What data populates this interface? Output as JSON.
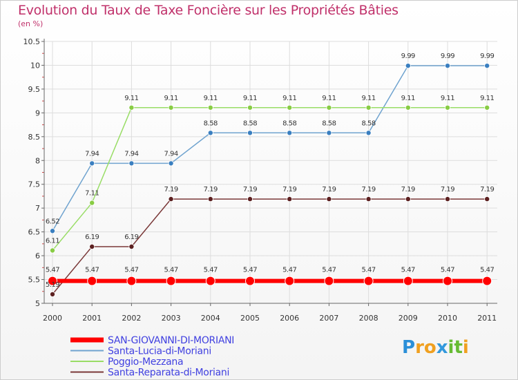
{
  "chart_data": {
    "type": "line",
    "title": "Evolution du Taux de Taxe Foncière sur les Propriétés Bâties",
    "ylabel": "(en %)",
    "xlabel": "",
    "ylim": [
      5,
      10.5
    ],
    "yticks": [
      "5",
      "5.5",
      "6",
      "6.5",
      "7",
      "7.5",
      "8",
      "8.5",
      "9",
      "9.5",
      "10",
      "10.5"
    ],
    "categories": [
      "2000",
      "2001",
      "2002",
      "2003",
      "2004",
      "2005",
      "2006",
      "2007",
      "2008",
      "2009",
      "2010",
      "2011"
    ],
    "grid": true,
    "legend_position": "bottom-left",
    "series": [
      {
        "name": "SAN-GIOVANNI-DI-MORIANI",
        "color": "#ff0000",
        "values": [
          5.47,
          5.47,
          5.47,
          5.47,
          5.47,
          5.47,
          5.47,
          5.47,
          5.47,
          5.47,
          5.47,
          5.47
        ],
        "labels": [
          "5.47",
          "5.47",
          "5.47",
          "5.47",
          "5.47",
          "5.47",
          "5.47",
          "5.47",
          "5.47",
          "5.47",
          "5.47",
          "5.47"
        ],
        "emphasis": true
      },
      {
        "name": "Santa-Lucia-di-Moriani",
        "color": "#6fa3cf",
        "marker_color": "#3a7fc0",
        "values": [
          6.52,
          7.94,
          7.94,
          7.94,
          8.58,
          8.58,
          8.58,
          8.58,
          8.58,
          9.99,
          9.99,
          9.99
        ],
        "labels": [
          "6.52",
          "7.94",
          "7.94",
          "7.94",
          "8.58",
          "8.58",
          "8.58",
          "8.58",
          "8.58",
          "9.99",
          "9.99",
          "9.99"
        ]
      },
      {
        "name": "Poggio-Mezzana",
        "color": "#99dd66",
        "marker_color": "#88cc44",
        "values": [
          6.11,
          7.11,
          9.11,
          9.11,
          9.11,
          9.11,
          9.11,
          9.11,
          9.11,
          9.11,
          9.11,
          9.11
        ],
        "labels": [
          "6.11",
          "7.11",
          "9.11",
          "9.11",
          "9.11",
          "9.11",
          "9.11",
          "9.11",
          "9.11",
          "9.11",
          "9.11",
          "9.11"
        ]
      },
      {
        "name": "Santa-Reparata-di-Moriani",
        "color": "#7a3838",
        "marker_color": "#5c2020",
        "values": [
          5.19,
          6.19,
          6.19,
          7.19,
          7.19,
          7.19,
          7.19,
          7.19,
          7.19,
          7.19,
          7.19,
          7.19
        ],
        "labels": [
          "5.19",
          "6.19",
          "6.19",
          "7.19",
          "7.19",
          "7.19",
          "7.19",
          "7.19",
          "7.19",
          "7.19",
          "7.19",
          "7.19"
        ]
      }
    ]
  },
  "logo": {
    "letters": [
      "P",
      "r",
      "o",
      "x",
      "i",
      "t",
      "i"
    ],
    "colors": [
      "#2b8fd8",
      "#f0a020",
      "#f0a020",
      "#3399dd",
      "#66bb33",
      "#66bb33",
      "#f0a020"
    ]
  }
}
